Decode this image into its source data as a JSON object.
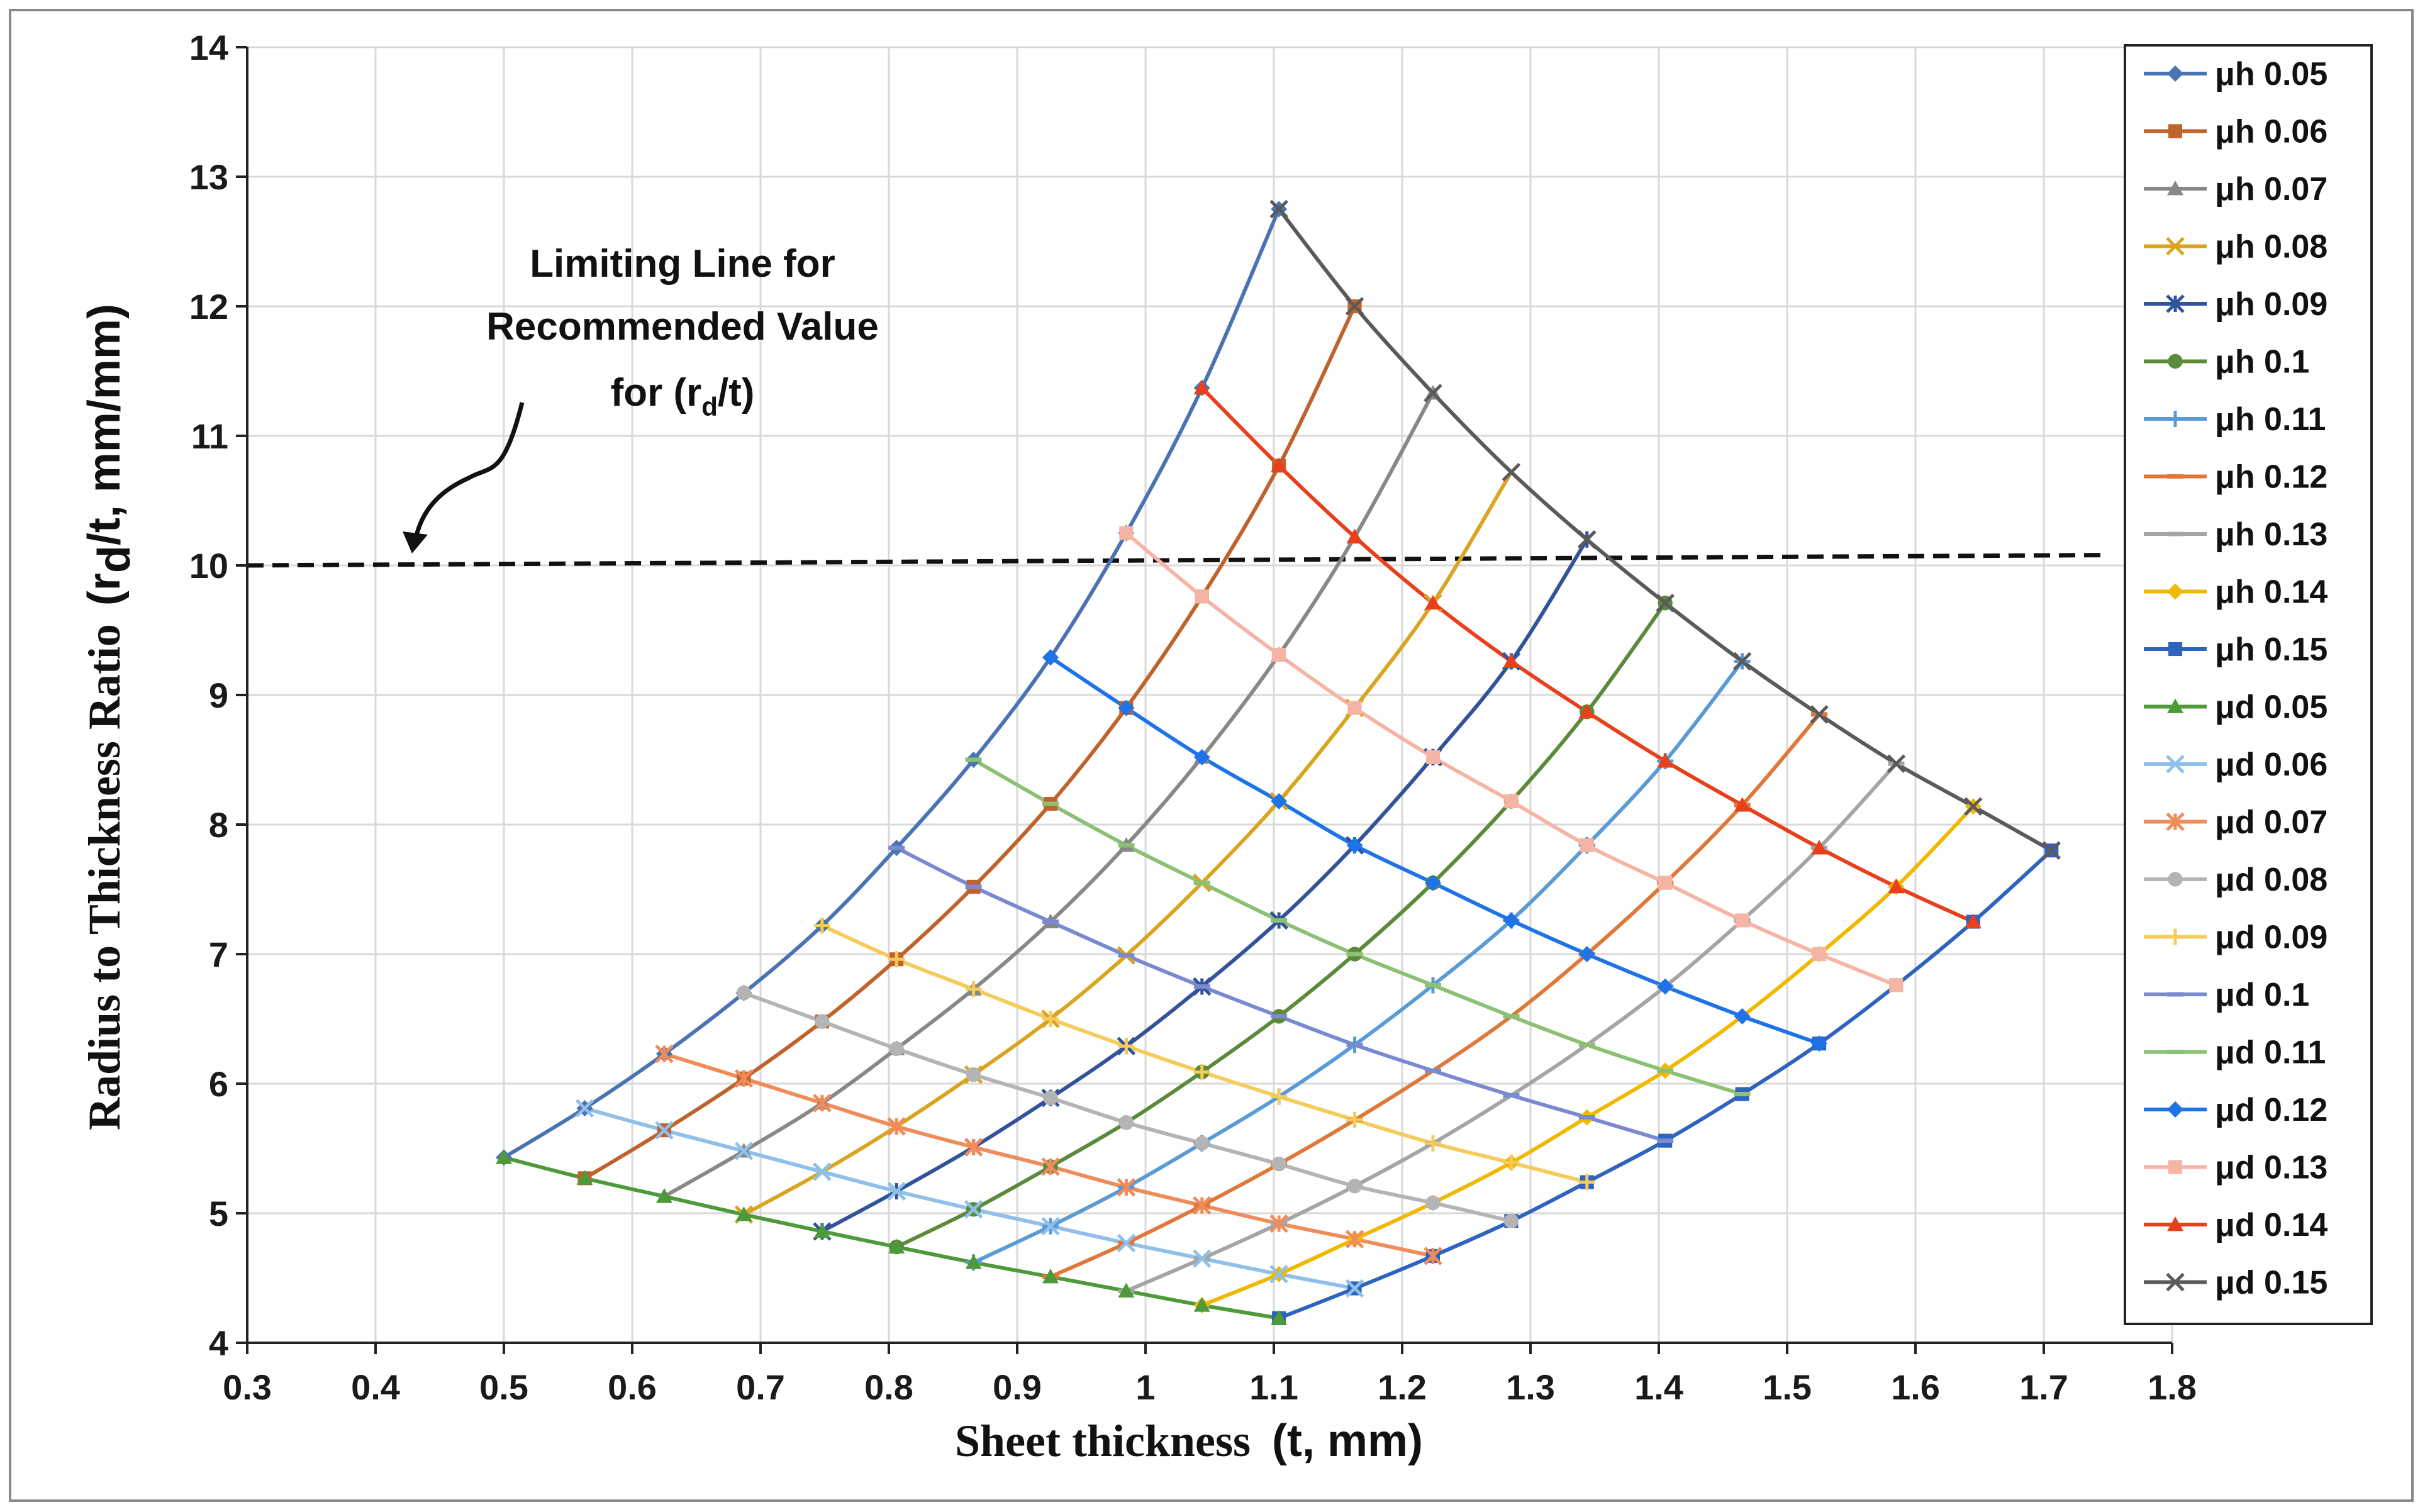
{
  "chart_data": {
    "type": "line",
    "title": "",
    "xlabel": "Sheet thickness",
    "xlabel_unit": "(t, mm)",
    "ylabel": "Radius to Thickness Ratio",
    "ylabel_unit_parts": [
      "(r",
      "d",
      "/t,",
      " mm/mm)"
    ],
    "xlim": [
      0.3,
      1.8
    ],
    "ylim": [
      4,
      14
    ],
    "x_ticks": [
      "0.3",
      "0.4",
      "0.5",
      "0.6",
      "0.7",
      "0.8",
      "0.9",
      "1",
      "1.1",
      "1.2",
      "1.3",
      "1.4",
      "1.5",
      "1.6",
      "1.7",
      "1.8"
    ],
    "y_ticks": [
      "4",
      "5",
      "6",
      "7",
      "8",
      "9",
      "10",
      "11",
      "12",
      "13",
      "14"
    ],
    "legend_position": "right",
    "grid": true,
    "limiting_line": {
      "y": 10,
      "x_range": [
        0.3,
        1.75
      ],
      "y_end": 10.08
    },
    "annotation": {
      "lines": [
        "Limiting Line for",
        "Recommended Value"
      ],
      "line3_parts": [
        "for (r",
        "d",
        "/t)"
      ]
    },
    "grid_points": [
      [
        [
          0.5,
          5.43
        ],
        [
          0.563,
          5.27
        ],
        [
          0.625,
          5.13
        ],
        [
          0.687,
          4.99
        ],
        [
          0.748,
          4.86
        ],
        [
          0.806,
          4.74
        ],
        [
          0.866,
          4.62
        ],
        [
          0.926,
          4.51
        ],
        [
          0.985,
          4.4
        ],
        [
          1.044,
          4.29
        ],
        [
          1.104,
          4.19
        ]
      ],
      [
        [
          0.563,
          5.81
        ],
        [
          0.625,
          5.64
        ],
        [
          0.687,
          5.48
        ],
        [
          0.748,
          5.32
        ],
        [
          0.806,
          5.17
        ],
        [
          0.866,
          5.03
        ],
        [
          0.926,
          4.9
        ],
        [
          0.985,
          4.77
        ],
        [
          1.044,
          4.65
        ],
        [
          1.104,
          4.53
        ],
        [
          1.163,
          4.42
        ]
      ],
      [
        [
          0.625,
          6.23
        ],
        [
          0.687,
          6.04
        ],
        [
          0.748,
          5.85
        ],
        [
          0.806,
          5.67
        ],
        [
          0.866,
          5.51
        ],
        [
          0.926,
          5.36
        ],
        [
          0.985,
          5.2
        ],
        [
          1.044,
          5.06
        ],
        [
          1.104,
          4.92
        ],
        [
          1.163,
          4.8
        ],
        [
          1.224,
          4.67
        ]
      ],
      [
        [
          0.687,
          6.7
        ],
        [
          0.748,
          6.48
        ],
        [
          0.806,
          6.27
        ],
        [
          0.866,
          6.07
        ],
        [
          0.926,
          5.89
        ],
        [
          0.985,
          5.7
        ],
        [
          1.044,
          5.54
        ],
        [
          1.104,
          5.38
        ],
        [
          1.163,
          5.21
        ],
        [
          1.224,
          5.08
        ],
        [
          1.285,
          4.94
        ]
      ],
      [
        [
          0.748,
          7.22
        ],
        [
          0.806,
          6.96
        ],
        [
          0.866,
          6.73
        ],
        [
          0.926,
          6.5
        ],
        [
          0.985,
          6.29
        ],
        [
          1.044,
          6.09
        ],
        [
          1.104,
          5.9
        ],
        [
          1.163,
          5.72
        ],
        [
          1.224,
          5.54
        ],
        [
          1.285,
          5.39
        ],
        [
          1.344,
          5.24
        ]
      ],
      [
        [
          0.806,
          7.82
        ],
        [
          0.866,
          7.52
        ],
        [
          0.926,
          7.25
        ],
        [
          0.985,
          6.99
        ],
        [
          1.044,
          6.75
        ],
        [
          1.104,
          6.52
        ],
        [
          1.163,
          6.3
        ],
        [
          1.224,
          6.1
        ],
        [
          1.285,
          5.91
        ],
        [
          1.344,
          5.74
        ],
        [
          1.405,
          5.56
        ]
      ],
      [
        [
          0.866,
          8.5
        ],
        [
          0.926,
          8.16
        ],
        [
          0.985,
          7.84
        ],
        [
          1.044,
          7.55
        ],
        [
          1.104,
          7.26
        ],
        [
          1.163,
          7.0
        ],
        [
          1.224,
          6.76
        ],
        [
          1.285,
          6.52
        ],
        [
          1.344,
          6.3
        ],
        [
          1.405,
          6.1
        ],
        [
          1.465,
          5.92
        ]
      ],
      [
        [
          0.926,
          9.29
        ],
        [
          0.985,
          8.9
        ],
        [
          1.044,
          8.52
        ],
        [
          1.104,
          8.18
        ],
        [
          1.163,
          7.84
        ],
        [
          1.224,
          7.55
        ],
        [
          1.285,
          7.26
        ],
        [
          1.344,
          7.0
        ],
        [
          1.405,
          6.75
        ],
        [
          1.465,
          6.52
        ],
        [
          1.525,
          6.31
        ]
      ],
      [
        [
          0.985,
          10.25
        ],
        [
          1.044,
          9.76
        ],
        [
          1.104,
          9.31
        ],
        [
          1.163,
          8.9
        ],
        [
          1.224,
          8.52
        ],
        [
          1.285,
          8.18
        ],
        [
          1.344,
          7.84
        ],
        [
          1.405,
          7.55
        ],
        [
          1.465,
          7.26
        ],
        [
          1.525,
          7.0
        ],
        [
          1.585,
          6.76
        ]
      ],
      [
        [
          1.044,
          11.37
        ],
        [
          1.104,
          10.77
        ],
        [
          1.163,
          10.22
        ],
        [
          1.224,
          9.71
        ],
        [
          1.285,
          9.26
        ],
        [
          1.344,
          8.87
        ],
        [
          1.405,
          8.49
        ],
        [
          1.465,
          8.15
        ],
        [
          1.525,
          7.82
        ],
        [
          1.585,
          7.52
        ],
        [
          1.645,
          7.25
        ]
      ],
      [
        [
          1.104,
          12.75
        ],
        [
          1.163,
          12.0
        ],
        [
          1.224,
          11.33
        ],
        [
          1.285,
          10.72
        ],
        [
          1.344,
          10.2
        ],
        [
          1.405,
          9.71
        ],
        [
          1.465,
          9.26
        ],
        [
          1.525,
          8.85
        ],
        [
          1.585,
          8.47
        ],
        [
          1.645,
          8.14
        ],
        [
          1.706,
          7.8
        ]
      ]
    ],
    "series": [
      {
        "name": "μh 0.05",
        "color": "#4a73b3",
        "marker": "diamond",
        "kind": "h",
        "index": 0
      },
      {
        "name": "μh 0.06",
        "color": "#c0622b",
        "marker": "square",
        "kind": "h",
        "index": 1
      },
      {
        "name": "μh 0.07",
        "color": "#888888",
        "marker": "triangle",
        "kind": "h",
        "index": 2
      },
      {
        "name": "μh 0.08",
        "color": "#d9a520",
        "marker": "x",
        "kind": "h",
        "index": 3
      },
      {
        "name": "μh 0.09",
        "color": "#32539a",
        "marker": "star",
        "kind": "h",
        "index": 4
      },
      {
        "name": "μh 0.1",
        "color": "#5a8a3a",
        "marker": "circle",
        "kind": "h",
        "index": 5
      },
      {
        "name": "μh 0.11",
        "color": "#5b9bd5",
        "marker": "plus",
        "kind": "h",
        "index": 6
      },
      {
        "name": "μh 0.12",
        "color": "#e0783a",
        "marker": "dash",
        "kind": "h",
        "index": 7
      },
      {
        "name": "μh 0.13",
        "color": "#a5a5a5",
        "marker": "dash",
        "kind": "h",
        "index": 8
      },
      {
        "name": "μh 0.14",
        "color": "#f0b800",
        "marker": "diamond",
        "kind": "h",
        "index": 9
      },
      {
        "name": "μh 0.15",
        "color": "#2e63c0",
        "marker": "square",
        "kind": "h",
        "index": 10
      },
      {
        "name": "μd 0.05",
        "color": "#4e9a3a",
        "marker": "triangle",
        "kind": "d",
        "index": 0
      },
      {
        "name": "μd 0.06",
        "color": "#8fc0ea",
        "marker": "x",
        "kind": "d",
        "index": 1
      },
      {
        "name": "μd 0.07",
        "color": "#f08c5a",
        "marker": "star",
        "kind": "d",
        "index": 2
      },
      {
        "name": "μd 0.08",
        "color": "#b4b4b4",
        "marker": "circle",
        "kind": "d",
        "index": 3
      },
      {
        "name": "μd 0.09",
        "color": "#f5cc5c",
        "marker": "plus",
        "kind": "d",
        "index": 4
      },
      {
        "name": "μd 0.1",
        "color": "#7a8ad0",
        "marker": "dash",
        "kind": "d",
        "index": 5
      },
      {
        "name": "μd 0.11",
        "color": "#8cc074",
        "marker": "dash",
        "kind": "d",
        "index": 6
      },
      {
        "name": "μd 0.12",
        "color": "#1e73e8",
        "marker": "diamond",
        "kind": "d",
        "index": 7
      },
      {
        "name": "μd 0.13",
        "color": "#f5b4a4",
        "marker": "square",
        "kind": "d",
        "index": 8
      },
      {
        "name": "μd 0.14",
        "color": "#e8401c",
        "marker": "triangle",
        "kind": "d",
        "index": 9
      },
      {
        "name": "μd 0.15",
        "color": "#5a5a5a",
        "marker": "x",
        "kind": "d",
        "index": 10
      }
    ]
  }
}
